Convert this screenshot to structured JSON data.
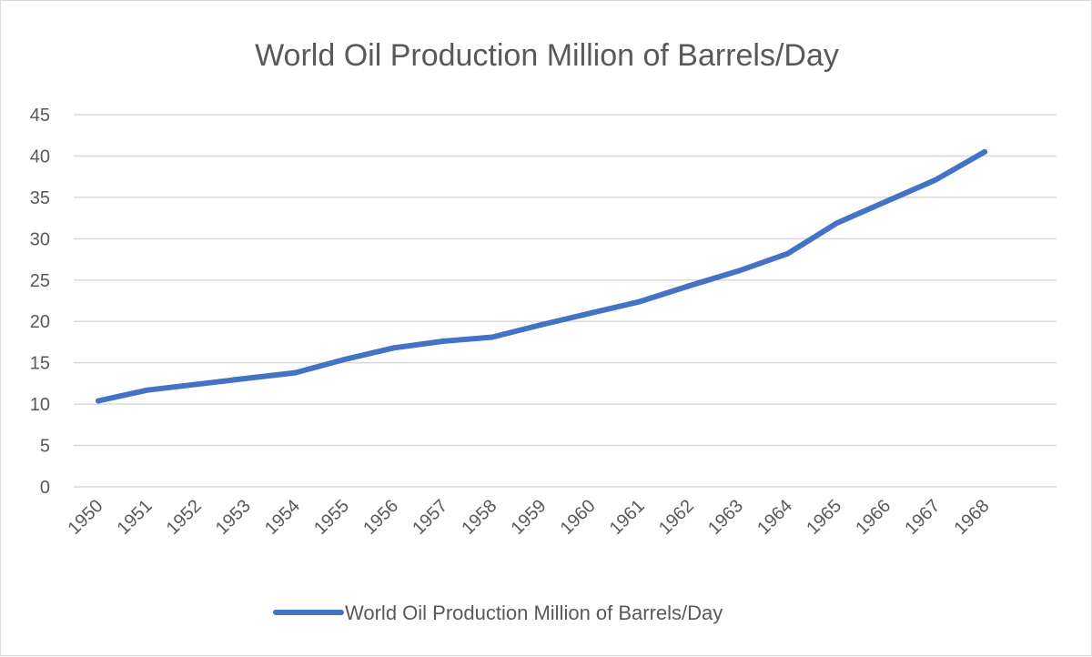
{
  "chart_data": {
    "type": "line",
    "title": "World Oil Production Million of Barrels/Day",
    "xlabel": "",
    "ylabel": "",
    "categories": [
      "1950",
      "1951",
      "1952",
      "1953",
      "1954",
      "1955",
      "1956",
      "1957",
      "1958",
      "1959",
      "1960",
      "1961",
      "1962",
      "1963",
      "1964",
      "1965",
      "1966",
      "1967",
      "1968"
    ],
    "series": [
      {
        "name": "World Oil Production Million of Barrels/Day",
        "color": "#4472c4",
        "values": [
          10.4,
          11.7,
          12.4,
          13.1,
          13.8,
          15.4,
          16.8,
          17.6,
          18.1,
          19.6,
          21.0,
          22.4,
          24.3,
          26.1,
          28.2,
          31.9,
          34.5,
          37.1,
          40.5
        ]
      }
    ],
    "ylim": [
      0,
      45
    ],
    "yticks": [
      "0",
      "5",
      "10",
      "15",
      "20",
      "25",
      "30",
      "35",
      "40",
      "45"
    ],
    "grid": true,
    "legend_position": "bottom"
  }
}
